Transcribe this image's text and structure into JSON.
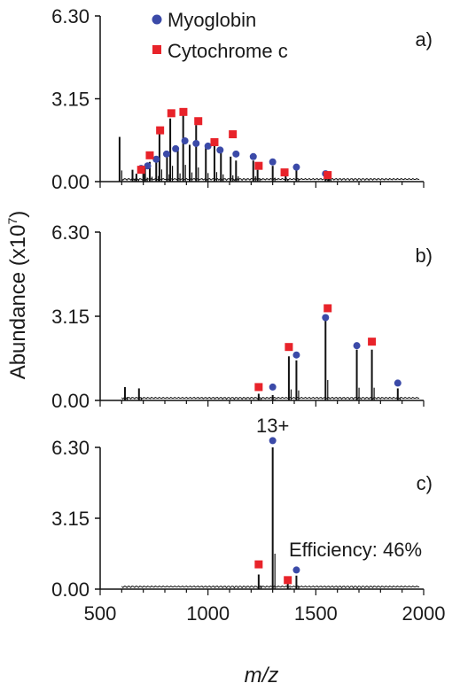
{
  "figure": {
    "ylabel": "Abundance (x10",
    "ylabel_sup": "7",
    "ylabel_close": ")",
    "xlabel": "m/z",
    "xticks": [
      "500",
      "1000",
      "1500",
      "2000"
    ]
  },
  "legend": [
    {
      "name": "Myoglobin",
      "marker": "circle",
      "color": "#3b4aa8"
    },
    {
      "name": "Cytochrome c",
      "marker": "square",
      "color": "#e8232a"
    }
  ],
  "chart_data": [
    {
      "type": "line",
      "panel_label": "a)",
      "xlim": [
        500,
        2000
      ],
      "ylim": [
        0,
        6.3
      ],
      "yticks": [
        "0.00",
        "3.15",
        "6.30"
      ],
      "spectrum": [
        {
          "x": 590,
          "y": 1.7
        },
        {
          "x": 650,
          "y": 0.45
        },
        {
          "x": 668,
          "y": 0.3
        },
        {
          "x": 700,
          "y": 0.35
        },
        {
          "x": 708,
          "y": 0.6
        },
        {
          "x": 730,
          "y": 0.75
        },
        {
          "x": 760,
          "y": 0.85
        },
        {
          "x": 775,
          "y": 1.85
        },
        {
          "x": 810,
          "y": 1.1
        },
        {
          "x": 825,
          "y": 2.4
        },
        {
          "x": 860,
          "y": 1.25
        },
        {
          "x": 885,
          "y": 2.55
        },
        {
          "x": 915,
          "y": 1.4
        },
        {
          "x": 945,
          "y": 2.15
        },
        {
          "x": 990,
          "y": 1.3
        },
        {
          "x": 1030,
          "y": 1.45
        },
        {
          "x": 1060,
          "y": 1.1
        },
        {
          "x": 1105,
          "y": 0.95
        },
        {
          "x": 1130,
          "y": 0.8
        },
        {
          "x": 1210,
          "y": 0.8
        },
        {
          "x": 1230,
          "y": 0.45
        },
        {
          "x": 1300,
          "y": 0.6
        },
        {
          "x": 1360,
          "y": 0.3
        },
        {
          "x": 1410,
          "y": 0.45
        },
        {
          "x": 1545,
          "y": 0.3
        },
        {
          "x": 1560,
          "y": 0.25
        }
      ],
      "series": [
        {
          "name": "Myoglobin",
          "marker": "circle",
          "points": [
            {
              "x": 690,
              "y": 0.5
            },
            {
              "x": 720,
              "y": 0.6
            },
            {
              "x": 760,
              "y": 0.85
            },
            {
              "x": 808,
              "y": 1.05
            },
            {
              "x": 850,
              "y": 1.25
            },
            {
              "x": 893,
              "y": 1.55
            },
            {
              "x": 945,
              "y": 1.45
            },
            {
              "x": 1000,
              "y": 1.35
            },
            {
              "x": 1056,
              "y": 1.2
            },
            {
              "x": 1130,
              "y": 1.05
            },
            {
              "x": 1210,
              "y": 0.95
            },
            {
              "x": 1300,
              "y": 0.75
            },
            {
              "x": 1410,
              "y": 0.55
            },
            {
              "x": 1545,
              "y": 0.3
            }
          ]
        },
        {
          "name": "Cytochrome c",
          "marker": "square",
          "points": [
            {
              "x": 690,
              "y": 0.45
            },
            {
              "x": 730,
              "y": 1.0
            },
            {
              "x": 778,
              "y": 1.95
            },
            {
              "x": 830,
              "y": 2.6
            },
            {
              "x": 886,
              "y": 2.65
            },
            {
              "x": 955,
              "y": 2.3
            },
            {
              "x": 1030,
              "y": 1.5
            },
            {
              "x": 1115,
              "y": 1.8
            },
            {
              "x": 1235,
              "y": 0.6
            },
            {
              "x": 1355,
              "y": 0.35
            },
            {
              "x": 1555,
              "y": 0.25
            }
          ]
        }
      ]
    },
    {
      "type": "line",
      "panel_label": "b)",
      "xlim": [
        500,
        2000
      ],
      "ylim": [
        0,
        6.3
      ],
      "yticks": [
        "0.00",
        "3.15",
        "6.30"
      ],
      "spectrum": [
        {
          "x": 615,
          "y": 0.5
        },
        {
          "x": 680,
          "y": 0.45
        },
        {
          "x": 1235,
          "y": 0.25
        },
        {
          "x": 1300,
          "y": 0.2
        },
        {
          "x": 1375,
          "y": 1.65
        },
        {
          "x": 1410,
          "y": 1.5
        },
        {
          "x": 1545,
          "y": 3.05
        },
        {
          "x": 1690,
          "y": 1.9
        },
        {
          "x": 1760,
          "y": 1.9
        },
        {
          "x": 1880,
          "y": 0.45
        }
      ],
      "series": [
        {
          "name": "Myoglobin",
          "marker": "circle",
          "points": [
            {
              "x": 1300,
              "y": 0.5
            },
            {
              "x": 1410,
              "y": 1.7
            },
            {
              "x": 1545,
              "y": 3.1
            },
            {
              "x": 1690,
              "y": 2.05
            },
            {
              "x": 1880,
              "y": 0.65
            }
          ]
        },
        {
          "name": "Cytochrome c",
          "marker": "square",
          "points": [
            {
              "x": 1235,
              "y": 0.5
            },
            {
              "x": 1375,
              "y": 2.0
            },
            {
              "x": 1555,
              "y": 3.45
            },
            {
              "x": 1760,
              "y": 2.2
            }
          ]
        }
      ]
    },
    {
      "type": "line",
      "panel_label": "c)",
      "xlim": [
        500,
        2000
      ],
      "ylim": [
        0,
        6.3
      ],
      "yticks": [
        "0.00",
        "3.15",
        "6.30"
      ],
      "annotations": [
        "13+",
        "Efficiency: 46%"
      ],
      "spectrum": [
        {
          "x": 1235,
          "y": 0.65
        },
        {
          "x": 1300,
          "y": 6.3
        },
        {
          "x": 1370,
          "y": 0.25
        },
        {
          "x": 1410,
          "y": 0.6
        }
      ],
      "series": [
        {
          "name": "Myoglobin",
          "marker": "circle",
          "points": [
            {
              "x": 1300,
              "y": 6.6
            },
            {
              "x": 1410,
              "y": 0.85
            }
          ]
        },
        {
          "name": "Cytochrome c",
          "marker": "square",
          "points": [
            {
              "x": 1235,
              "y": 1.1
            },
            {
              "x": 1370,
              "y": 0.4
            }
          ]
        }
      ]
    }
  ]
}
